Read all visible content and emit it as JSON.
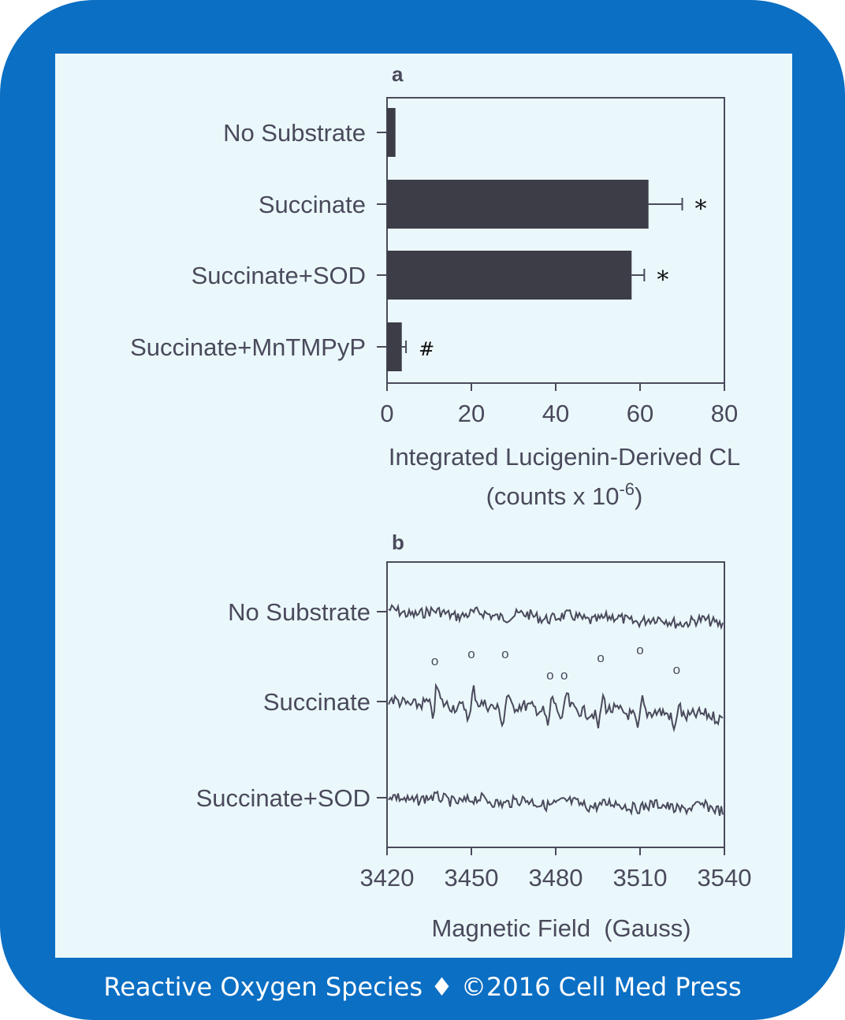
{
  "colors": {
    "frame": "#0b6fc4",
    "panel": "#ebf8fb",
    "ink": "#4a4a5c",
    "bar": "#3d3d48",
    "footer_text": "#ffffff"
  },
  "footer": {
    "title": "Reactive Oxygen Species",
    "separator": "♦",
    "copyright": "©2016 Cell Med Press"
  },
  "chart_data": [
    {
      "type": "bar",
      "orientation": "horizontal",
      "panel_label": "a",
      "categories": [
        "No Substrate",
        "Succinate",
        "Succinate+SOD",
        "Succinate+MnTMPyP"
      ],
      "values": [
        2,
        62,
        58,
        3.5
      ],
      "errors": [
        0,
        8,
        3,
        1
      ],
      "annotations": [
        "",
        "*",
        "*",
        "#"
      ],
      "xlabel_line1": "Integrated Lucigenin-Derived CL",
      "xlabel_line2_prefix": "(counts x 10",
      "xlabel_line2_exp": "-6",
      "xlabel_line2_suffix": ")",
      "xlim": [
        0,
        80
      ],
      "xticks": [
        0,
        20,
        40,
        60,
        80
      ],
      "xtick_labels": [
        "0",
        "20",
        "40",
        "60",
        "80"
      ]
    },
    {
      "type": "line",
      "panel_label": "b",
      "series": [
        {
          "name": "No Substrate",
          "peaks": []
        },
        {
          "name": "Succinate",
          "peaks": [
            3437,
            3450,
            3462,
            3478,
            3483,
            3496,
            3510,
            3523
          ]
        },
        {
          "name": "Succinate+SOD",
          "peaks": []
        }
      ],
      "peak_marker": "o",
      "xlabel": "Magnetic Field  (Gauss)",
      "xlim": [
        3420,
        3540
      ],
      "xticks": [
        3420,
        3450,
        3480,
        3510,
        3540
      ],
      "xtick_labels": [
        "3420",
        "3450",
        "3480",
        "3510",
        "3540"
      ]
    }
  ]
}
